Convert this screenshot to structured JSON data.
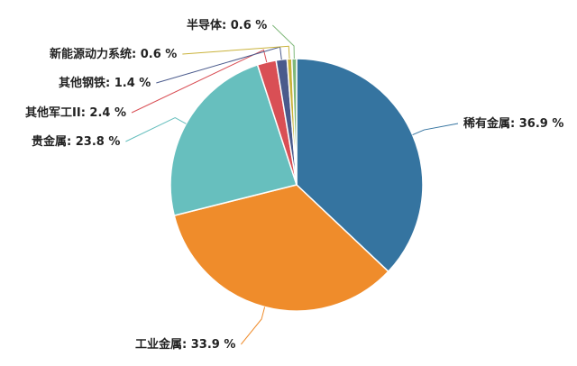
{
  "chart_data": {
    "type": "pie",
    "categories": [
      "稀有金属",
      "工业金属",
      "贵金属",
      "其他军工II",
      "其他钢铁",
      "新能源动力系统",
      "半导体"
    ],
    "values": [
      36.9,
      33.9,
      23.8,
      2.4,
      1.4,
      0.6,
      0.6
    ],
    "value_labels": [
      "36.9 %",
      "33.9 %",
      "23.8 %",
      "2.4 %",
      "1.4 %",
      "0.6 %",
      "0.6 %"
    ],
    "label_separator": ": ",
    "colors": [
      "#3574a0",
      "#ef8c2b",
      "#67bfbe",
      "#d94f55",
      "#4a5a8c",
      "#c9b23a",
      "#7fb87a"
    ]
  }
}
